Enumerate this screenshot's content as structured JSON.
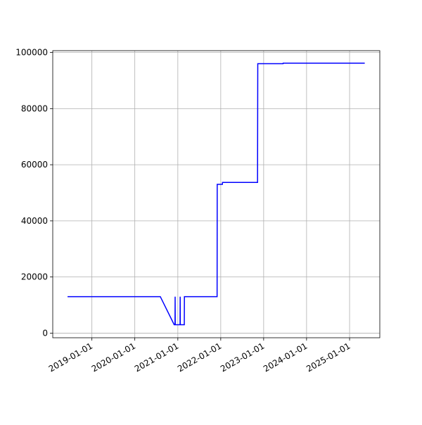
{
  "chart_data": {
    "type": "line",
    "x": [
      "2018-06-08",
      "2020-08-05",
      "2020-12-01",
      "2020-12-08",
      "2020-12-09",
      "2020-12-10",
      "2021-01-20",
      "2021-01-21",
      "2021-01-22",
      "2021-02-25",
      "2021-02-26",
      "2021-12-01",
      "2021-12-02",
      "2022-01-15",
      "2022-01-16",
      "2022-11-10",
      "2022-11-12",
      "2023-06-15",
      "2023-06-16",
      "2025-05-10"
    ],
    "series": [
      {
        "color": "#0000ff",
        "values": [
          13000,
          13000,
          3000,
          3000,
          13000,
          3000,
          3000,
          13000,
          3000,
          3000,
          13000,
          13000,
          53000,
          53000,
          53700,
          53700,
          96000,
          96000,
          96200,
          96200
        ]
      }
    ],
    "xlim": [
      "2018-02-02",
      "2025-09-15"
    ],
    "xticks": [
      "2019-01-01",
      "2020-01-01",
      "2021-01-01",
      "2022-01-01",
      "2023-01-01",
      "2024-01-01",
      "2025-01-01"
    ],
    "ylim": [
      -1650,
      100650
    ],
    "yticks": [
      0,
      20000,
      40000,
      60000,
      80000,
      100000
    ],
    "grid": true
  }
}
